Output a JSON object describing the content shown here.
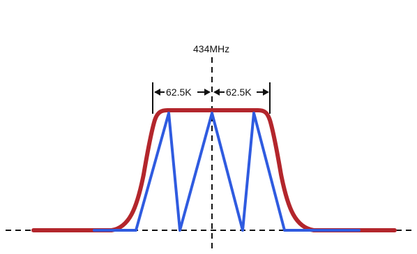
{
  "center_frequency_label": "434MHz",
  "left_span_label": "62.5K",
  "right_span_label": "62.5K",
  "colors": {
    "envelope": "#b3262c",
    "channel_lobes": "#2f5be0",
    "axes": "#111111"
  }
}
